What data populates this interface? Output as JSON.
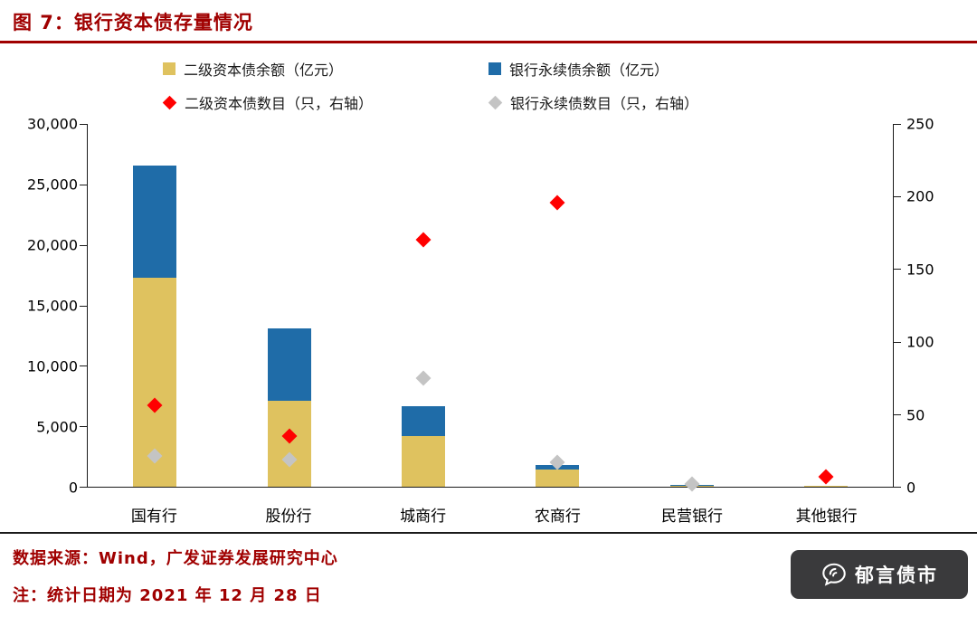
{
  "title": "图 7：银行资本债存量情况",
  "legend": [
    {
      "label": "二级资本债余额（亿元）",
      "marker": "square",
      "color": "#DFC25F"
    },
    {
      "label": "银行永续债余额（亿元）",
      "marker": "square",
      "color": "#1F6CA8"
    },
    {
      "label": "二级资本债数目（只，右轴）",
      "marker": "diamond",
      "color": "#FF0000"
    },
    {
      "label": "银行永续债数目（只，右轴）",
      "marker": "diamond",
      "color": "#C4C4C4"
    }
  ],
  "chart_data": {
    "type": "bar",
    "subtype": "stacked-bars-with-scatter-on-secondary-axis",
    "title": "银行资本债存量情况",
    "categories": [
      "国有行",
      "股份行",
      "城商行",
      "农商行",
      "民营银行",
      "其他银行"
    ],
    "series": [
      {
        "name": "二级资本债余额（亿元）",
        "type": "bar",
        "axis": "left",
        "color": "#DFC25F",
        "values": [
          17300,
          7100,
          4200,
          1400,
          100,
          50
        ]
      },
      {
        "name": "银行永续债余额（亿元）",
        "type": "bar",
        "axis": "left",
        "color": "#1F6CA8",
        "values": [
          9300,
          6000,
          2500,
          400,
          60,
          0
        ]
      },
      {
        "name": "二级资本债数目（只，右轴）",
        "type": "scatter",
        "axis": "right",
        "color": "#FF0000",
        "values": [
          56,
          35,
          170,
          196,
          null,
          7
        ]
      },
      {
        "name": "银行永续债数目（只，右轴）",
        "type": "scatter",
        "axis": "right",
        "color": "#C4C4C4",
        "values": [
          21,
          19,
          75,
          17,
          2,
          null
        ]
      }
    ],
    "left_axis": {
      "min": 0,
      "max": 30000,
      "step": 5000,
      "ticks": [
        "0",
        "5,000",
        "10,000",
        "15,000",
        "20,000",
        "25,000",
        "30,000"
      ]
    },
    "right_axis": {
      "min": 0,
      "max": 250,
      "step": 50,
      "ticks": [
        "0",
        "50",
        "100",
        "150",
        "200",
        "250"
      ]
    },
    "grid": false,
    "legend_position": "top"
  },
  "footer": {
    "source": "数据来源：Wind，广发证券发展研究中心",
    "note": "注：统计日期为 2021 年 12 月 28 日"
  },
  "logo": {
    "text": "郁言债市",
    "background": "#3A3A3C"
  },
  "colors": {
    "accent_maroon": "#A00000",
    "axis_line": "#1A1A1A"
  }
}
